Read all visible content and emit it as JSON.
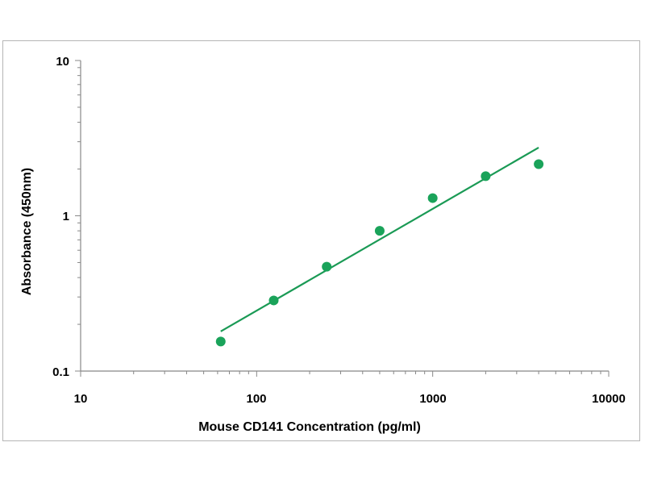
{
  "chart_data": {
    "type": "scatter",
    "xlabel": "Mouse CD141 Concentration (pg/ml)",
    "ylabel": "Absorbance (450nm)",
    "x_scale": "log",
    "y_scale": "log",
    "xlim": [
      10,
      10000
    ],
    "ylim": [
      0.1,
      10
    ],
    "x_ticks": [
      "10",
      "100",
      "1000",
      "10000"
    ],
    "y_ticks": [
      "0.1",
      "1",
      "10"
    ],
    "grid": false,
    "legend": "none",
    "series": [
      {
        "x": [
          62.5,
          125,
          250,
          500,
          1000,
          2000,
          4000
        ],
        "y": [
          0.155,
          0.285,
          0.47,
          0.8,
          1.3,
          1.8,
          2.15
        ]
      }
    ],
    "trendline": {
      "x": [
        62.5,
        4000
      ],
      "y": [
        0.18,
        2.75
      ]
    },
    "colors": {
      "marker": "#1aa35a",
      "line": "#1a9a55",
      "axis": "#888888"
    }
  }
}
